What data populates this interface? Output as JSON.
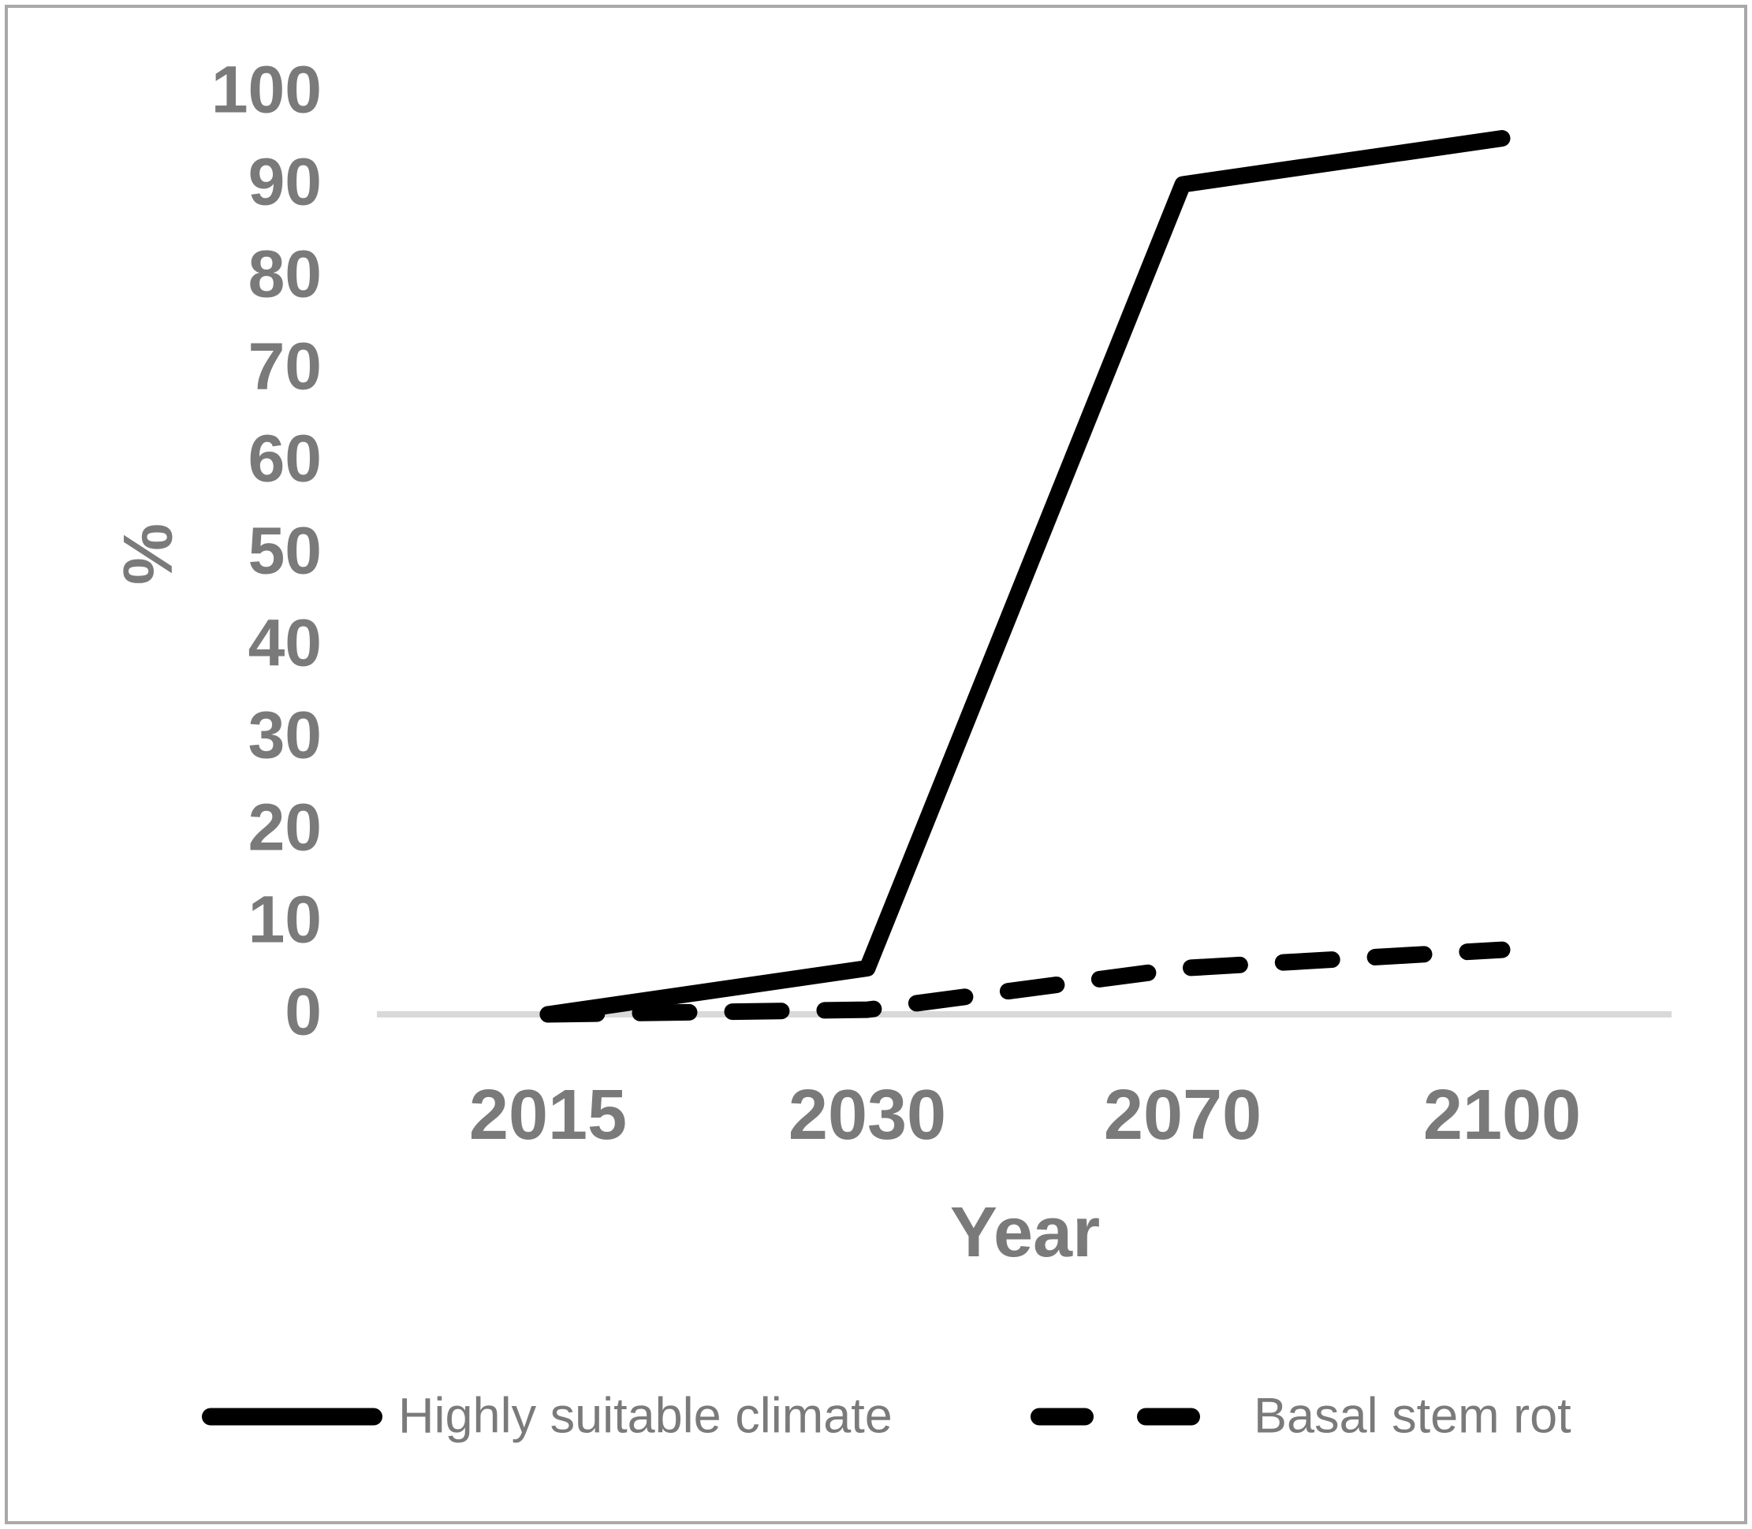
{
  "chart_data": {
    "type": "line",
    "title": "",
    "xlabel": "Year",
    "ylabel": "%",
    "categories": [
      "2015",
      "2030",
      "2070",
      "2100"
    ],
    "series": [
      {
        "name": "Highly suitable climate",
        "style": "solid",
        "values": [
          0,
          5,
          90,
          95
        ]
      },
      {
        "name": "Basal stem rot",
        "style": "dashed",
        "values": [
          0,
          0.5,
          5,
          7
        ]
      }
    ],
    "ylim": [
      0,
      100
    ],
    "ytick_step": 10,
    "grid": false,
    "legend_position": "bottom",
    "colors": {
      "line": "#000000",
      "tick_text": "#7a7a7a",
      "baseline": "#d9d9d9",
      "frame": "#a9a9a9"
    }
  }
}
